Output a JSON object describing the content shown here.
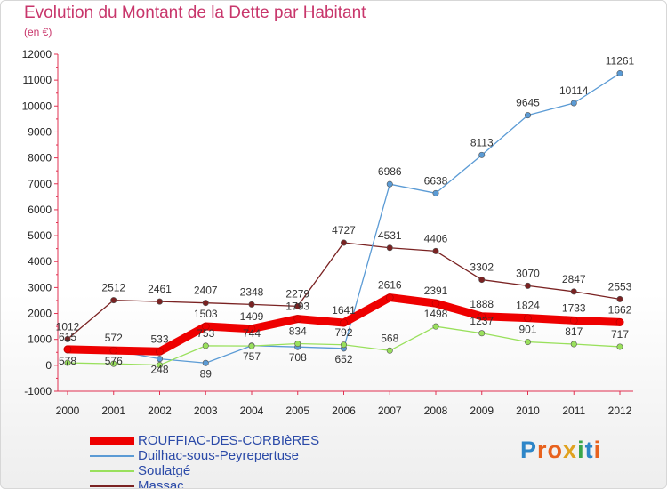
{
  "chart": {
    "title": "Evolution du Montant de la Dette par Habitant",
    "subtitle": "(en €)"
  },
  "logo": {
    "text": "Proxiti",
    "letters": [
      "P",
      "r",
      "o",
      "x",
      "i",
      "t",
      "i"
    ],
    "colors": [
      "#2e86c8",
      "#e8621e",
      "#e8621e",
      "#e0a21f",
      "#3aa64a",
      "#2e86c8",
      "#e8621e"
    ]
  },
  "chart_data": {
    "type": "line",
    "title": "Evolution du Montant de la Dette par Habitant",
    "subtitle": "(en €)",
    "xlabel": "",
    "ylabel": "",
    "x": [
      "2000",
      "2001",
      "2002",
      "2003",
      "2004",
      "2005",
      "2006",
      "2007",
      "2008",
      "2009",
      "2010",
      "2011",
      "2012"
    ],
    "ylim": [
      -1000,
      12000
    ],
    "yticks": [
      -1000,
      0,
      1000,
      2000,
      3000,
      4000,
      5000,
      6000,
      7000,
      8000,
      9000,
      10000,
      11000,
      12000
    ],
    "grid": false,
    "legend": "bottom-left",
    "series": [
      {
        "name": "ROUFFIAC-DES-CORBIèRES",
        "color": "#ee0000",
        "values": [
          615,
          572,
          533,
          1503,
          1409,
          1793,
          1641,
          2616,
          2391,
          1888,
          1824,
          1733,
          1662
        ],
        "labels": [
          "615",
          "572",
          "533",
          "1503",
          "1409",
          "1793",
          "1641",
          "2616",
          "2391",
          "1888",
          "1824",
          "1733",
          "1662"
        ],
        "label_position": "above",
        "thick": true
      },
      {
        "name": "Duilhac-sous-Peyrepertuse",
        "color": "#5b9bd5",
        "values": [
          578,
          576,
          248,
          89,
          757,
          708,
          652,
          6986,
          6638,
          8113,
          9645,
          10114,
          11261
        ],
        "labels": [
          "578",
          "576",
          "248",
          "89",
          "757",
          "708",
          "652",
          "6986",
          "6638",
          "8113",
          "9645",
          "10114",
          "11261"
        ],
        "label_position": "mixed"
      },
      {
        "name": "Soulatgé",
        "color": "#99e05c",
        "values": [
          96,
          60,
          10,
          753,
          744,
          834,
          792,
          568,
          1498,
          1237,
          901,
          817,
          717
        ],
        "labels": [
          "",
          "",
          "",
          "753",
          "744",
          "834",
          "792",
          "568",
          "1498",
          "1237",
          "901",
          "817",
          "717"
        ],
        "label_position": "above"
      },
      {
        "name": "Massac",
        "color": "#7a2222",
        "values": [
          1012,
          2512,
          2461,
          2407,
          2348,
          2279,
          4727,
          4531,
          4406,
          3302,
          3070,
          2847,
          2553
        ],
        "labels": [
          "1012",
          "2512",
          "2461",
          "2407",
          "2348",
          "2279",
          "4727",
          "4531",
          "4406",
          "3302",
          "3070",
          "2847",
          "2553"
        ],
        "label_position": "above"
      }
    ]
  }
}
